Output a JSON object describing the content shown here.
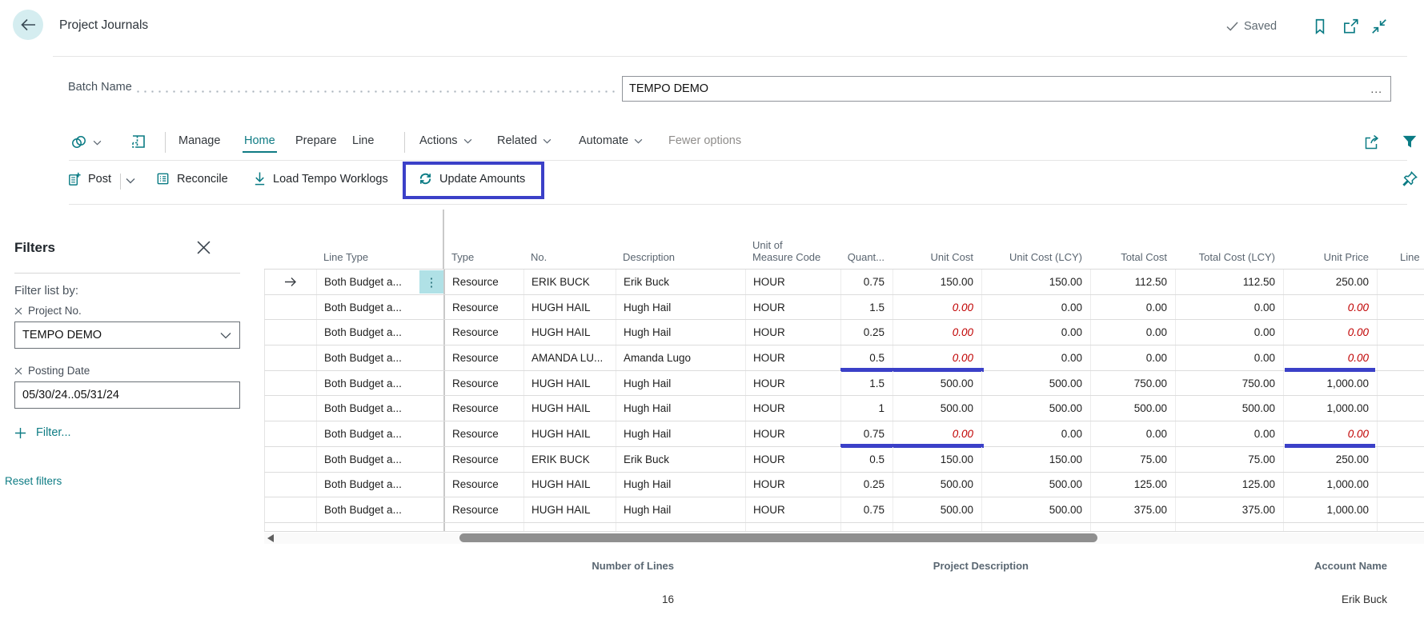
{
  "header": {
    "title": "Project Journals",
    "saved": "Saved"
  },
  "batch": {
    "label": "Batch Name",
    "value": "TEMPO DEMO",
    "more": "..."
  },
  "menubar": {
    "tabs": [
      {
        "label": "Manage",
        "active": false
      },
      {
        "label": "Home",
        "active": true
      },
      {
        "label": "Prepare",
        "active": false
      },
      {
        "label": "Line",
        "active": false
      }
    ],
    "menus": [
      {
        "label": "Actions"
      },
      {
        "label": "Related"
      },
      {
        "label": "Automate"
      }
    ],
    "fewer_options": "Fewer options"
  },
  "actionbar": {
    "post": "Post",
    "reconcile": "Reconcile",
    "load_worklogs": "Load Tempo Worklogs",
    "update_amounts": "Update Amounts"
  },
  "filters": {
    "title": "Filters",
    "heading": "Filter list by:",
    "fields": [
      {
        "label": "Project No.",
        "value": "TEMPO DEMO",
        "control": "select"
      },
      {
        "label": "Posting Date",
        "value": "05/30/24..05/31/24",
        "control": "input"
      }
    ],
    "add_filter": "Filter...",
    "reset": "Reset filters"
  },
  "table": {
    "columns": [
      "Line Type",
      "Type",
      "No.",
      "Description",
      "Unit of Measure Code",
      "Quant...",
      "Unit Cost",
      "Unit Cost (LCY)",
      "Total Cost",
      "Total Cost (LCY)",
      "Unit Price",
      "Line"
    ],
    "rows": [
      {
        "current": true,
        "line_type": "Both Budget a...",
        "type": "Resource",
        "no": "ERIK BUCK",
        "description": "Erik Buck",
        "uom": "HOUR",
        "qty": "0.75",
        "unit_cost": "150.00",
        "unit_cost_lcy": "150.00",
        "total_cost": "112.50",
        "total_cost_lcy": "112.50",
        "unit_price": "250.00",
        "zero": false,
        "underline": false
      },
      {
        "current": false,
        "line_type": "Both Budget a...",
        "type": "Resource",
        "no": "HUGH HAIL",
        "description": "Hugh Hail",
        "uom": "HOUR",
        "qty": "1.5",
        "unit_cost": "0.00",
        "unit_cost_lcy": "0.00",
        "total_cost": "0.00",
        "total_cost_lcy": "0.00",
        "unit_price": "0.00",
        "zero": true,
        "underline": false
      },
      {
        "current": false,
        "line_type": "Both Budget a...",
        "type": "Resource",
        "no": "HUGH HAIL",
        "description": "Hugh Hail",
        "uom": "HOUR",
        "qty": "0.25",
        "unit_cost": "0.00",
        "unit_cost_lcy": "0.00",
        "total_cost": "0.00",
        "total_cost_lcy": "0.00",
        "unit_price": "0.00",
        "zero": true,
        "underline": false
      },
      {
        "current": false,
        "line_type": "Both Budget a...",
        "type": "Resource",
        "no": "AMANDA LU...",
        "description": "Amanda Lugo",
        "uom": "HOUR",
        "qty": "0.5",
        "unit_cost": "0.00",
        "unit_cost_lcy": "0.00",
        "total_cost": "0.00",
        "total_cost_lcy": "0.00",
        "unit_price": "0.00",
        "zero": true,
        "underline": true
      },
      {
        "current": false,
        "line_type": "Both Budget a...",
        "type": "Resource",
        "no": "HUGH HAIL",
        "description": "Hugh Hail",
        "uom": "HOUR",
        "qty": "1.5",
        "unit_cost": "500.00",
        "unit_cost_lcy": "500.00",
        "total_cost": "750.00",
        "total_cost_lcy": "750.00",
        "unit_price": "1,000.00",
        "zero": false,
        "underline": false
      },
      {
        "current": false,
        "line_type": "Both Budget a...",
        "type": "Resource",
        "no": "HUGH HAIL",
        "description": "Hugh Hail",
        "uom": "HOUR",
        "qty": "1",
        "unit_cost": "500.00",
        "unit_cost_lcy": "500.00",
        "total_cost": "500.00",
        "total_cost_lcy": "500.00",
        "unit_price": "1,000.00",
        "zero": false,
        "underline": false
      },
      {
        "current": false,
        "line_type": "Both Budget a...",
        "type": "Resource",
        "no": "HUGH HAIL",
        "description": "Hugh Hail",
        "uom": "HOUR",
        "qty": "0.75",
        "unit_cost": "0.00",
        "unit_cost_lcy": "0.00",
        "total_cost": "0.00",
        "total_cost_lcy": "0.00",
        "unit_price": "0.00",
        "zero": true,
        "underline": true
      },
      {
        "current": false,
        "line_type": "Both Budget a...",
        "type": "Resource",
        "no": "ERIK BUCK",
        "description": "Erik Buck",
        "uom": "HOUR",
        "qty": "0.5",
        "unit_cost": "150.00",
        "unit_cost_lcy": "150.00",
        "total_cost": "75.00",
        "total_cost_lcy": "75.00",
        "unit_price": "250.00",
        "zero": false,
        "underline": false
      },
      {
        "current": false,
        "line_type": "Both Budget a...",
        "type": "Resource",
        "no": "HUGH HAIL",
        "description": "Hugh Hail",
        "uom": "HOUR",
        "qty": "0.25",
        "unit_cost": "500.00",
        "unit_cost_lcy": "500.00",
        "total_cost": "125.00",
        "total_cost_lcy": "125.00",
        "unit_price": "1,000.00",
        "zero": false,
        "underline": false
      },
      {
        "current": false,
        "line_type": "Both Budget a...",
        "type": "Resource",
        "no": "HUGH HAIL",
        "description": "Hugh Hail",
        "uom": "HOUR",
        "qty": "0.75",
        "unit_cost": "500.00",
        "unit_cost_lcy": "500.00",
        "total_cost": "375.00",
        "total_cost_lcy": "375.00",
        "unit_price": "1,000.00",
        "zero": false,
        "underline": false
      }
    ]
  },
  "footer": {
    "columns": [
      {
        "label": "Number of Lines",
        "value": "16"
      },
      {
        "label": "Project Description",
        "value": ""
      },
      {
        "label": "Account Name",
        "value": "Erik Buck"
      }
    ]
  },
  "icons": {
    "back": "arrow-left",
    "saved": "checkmark",
    "bookmark": "bookmark",
    "popup": "open-in-window",
    "collapse": "arrows-inward",
    "views": "overlapping-pages",
    "analyze": "grid-layout",
    "share": "share-arrow",
    "filter": "funnel",
    "post": "journal-plus",
    "reconcile": "checklist",
    "download": "arrow-down-line",
    "refresh": "circular-arrows",
    "pin": "pushpin",
    "row_current": "arrow-right",
    "row_menu": "vertical-ellipsis",
    "scroll_left": "triangle-left"
  },
  "colors": {
    "accent_teal": "#0a7b84",
    "highlight_blue": "#3b40c8",
    "error_red": "#c00000",
    "selected_cell": "#b0e1e6",
    "back_circle": "#d5edf0"
  }
}
